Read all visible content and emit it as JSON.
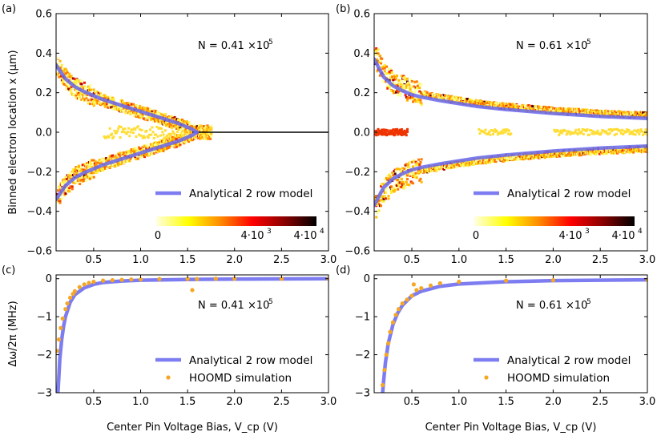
{
  "chart_data": [
    {
      "panel_label": "(a)",
      "type": "heatmap",
      "ylabel": "Binned electron location x (μm)",
      "xlim": [
        0.1,
        3.0
      ],
      "ylim": [
        -0.6,
        0.6
      ],
      "xticks": [
        "0.5",
        "1.0",
        "1.5",
        "2.0",
        "2.5",
        "3.0"
      ],
      "yticks": [
        "0.6",
        "0.4",
        "0.2",
        "0.0",
        "−0.2",
        "−0.4",
        "−0.6"
      ],
      "annotation": {
        "text": "N = 0.41 ×10",
        "sup": "5"
      },
      "colorbar": {
        "labels": [
          "0",
          "4·10",
          "4·10"
        ],
        "sups": [
          "",
          "3",
          "4"
        ],
        "colors": [
          "#ffffe0",
          "#ffff00",
          "#ff8c00",
          "#ff0000",
          "#8b0000",
          "#000000"
        ]
      },
      "series": [
        {
          "name": "Analytical 2 row model",
          "type": "line",
          "color": "#6666ee",
          "x": [
            0.1,
            0.2,
            0.3,
            0.4,
            0.5,
            0.6,
            0.7,
            0.8,
            0.9,
            1.0,
            1.1,
            1.2,
            1.3,
            1.4,
            1.5,
            1.55,
            1.6
          ],
          "y": [
            0.34,
            0.27,
            0.23,
            0.205,
            0.185,
            0.165,
            0.15,
            0.135,
            0.12,
            0.105,
            0.09,
            0.075,
            0.06,
            0.045,
            0.025,
            0.015,
            0.0
          ]
        }
      ],
      "legend": {
        "entries": [
          "Analytical 2 row model"
        ],
        "placement": "lower-right"
      }
    },
    {
      "panel_label": "(b)",
      "type": "heatmap",
      "xlim": [
        0.1,
        3.0
      ],
      "ylim": [
        -0.6,
        0.6
      ],
      "xticks": [
        "0.5",
        "1.0",
        "1.5",
        "2.0",
        "2.5",
        "3.0"
      ],
      "yticks": [
        "0.6",
        "0.4",
        "0.2",
        "0.0",
        "−0.2",
        "−0.4",
        "−0.6"
      ],
      "annotation": {
        "text": "N = 0.61 ×10",
        "sup": "5"
      },
      "colorbar": {
        "labels": [
          "0",
          "4·10",
          "4·10"
        ],
        "sups": [
          "",
          "3",
          "4"
        ],
        "colors": [
          "#ffffe0",
          "#ffff00",
          "#ff8c00",
          "#ff0000",
          "#8b0000",
          "#000000"
        ]
      },
      "series": [
        {
          "name": "Analytical 2 row model",
          "type": "line",
          "color": "#6666ee",
          "x": [
            0.1,
            0.2,
            0.3,
            0.4,
            0.5,
            0.6,
            0.8,
            1.0,
            1.2,
            1.5,
            2.0,
            2.5,
            3.0
          ],
          "y": [
            0.37,
            0.28,
            0.235,
            0.21,
            0.19,
            0.178,
            0.16,
            0.145,
            0.13,
            0.115,
            0.095,
            0.08,
            0.07
          ]
        }
      ],
      "legend": {
        "entries": [
          "Analytical 2 row model"
        ],
        "placement": "lower-right"
      }
    },
    {
      "panel_label": "(c)",
      "type": "line",
      "xlabel": "Center Pin Voltage Bias, V_cp (V)",
      "ylabel": "Δω/2π (MHz)",
      "xlim": [
        0.1,
        3.0
      ],
      "ylim": [
        -3,
        0.1
      ],
      "xticks": [
        "0.5",
        "1.0",
        "1.5",
        "2.0",
        "2.5",
        "3.0"
      ],
      "yticks": [
        "0",
        "−1",
        "−2",
        "−3"
      ],
      "annotation": {
        "text": "N = 0.41 ×10",
        "sup": "5"
      },
      "series": [
        {
          "name": "Analytical 2 row model",
          "type": "line",
          "color": "#6666ee",
          "x": [
            0.12,
            0.14,
            0.16,
            0.18,
            0.2,
            0.25,
            0.3,
            0.4,
            0.5,
            0.6,
            0.8,
            1.0,
            1.5,
            2.0,
            3.0
          ],
          "y": [
            -3.0,
            -2.1,
            -1.6,
            -1.25,
            -1.0,
            -0.62,
            -0.42,
            -0.24,
            -0.15,
            -0.1,
            -0.06,
            -0.04,
            -0.02,
            -0.01,
            0.0
          ]
        },
        {
          "name": "HOOMD simulation",
          "type": "scatter",
          "color": "#f5a623",
          "x": [
            0.11,
            0.13,
            0.15,
            0.17,
            0.2,
            0.22,
            0.25,
            0.28,
            0.3,
            0.35,
            0.4,
            0.45,
            0.5,
            0.6,
            0.7,
            0.8,
            0.9,
            1.0,
            1.2,
            1.5,
            1.55,
            1.6,
            1.8,
            2.0,
            2.5,
            3.0
          ],
          "y": [
            -1.9,
            -1.6,
            -1.3,
            -1.05,
            -0.8,
            -0.65,
            -0.5,
            -0.4,
            -0.33,
            -0.22,
            -0.15,
            -0.11,
            -0.08,
            -0.05,
            -0.04,
            -0.03,
            -0.02,
            -0.02,
            -0.01,
            -0.01,
            -0.3,
            -0.01,
            0.0,
            0.0,
            0.0,
            0.0
          ]
        }
      ],
      "legend": {
        "entries": [
          "Analytical 2 row model",
          "HOOMD simulation"
        ],
        "placement": "lower-right"
      }
    },
    {
      "panel_label": "(d)",
      "type": "line",
      "xlabel": "Center Pin Voltage Bias, V_cp (V)",
      "xlim": [
        0.1,
        3.0
      ],
      "ylim": [
        -3,
        0.1
      ],
      "xticks": [
        "0.5",
        "1.0",
        "1.5",
        "2.0",
        "2.5",
        "3.0"
      ],
      "yticks": [
        "0",
        "−1",
        "−2",
        "−3"
      ],
      "annotation": {
        "text": "N = 0.61 ×10",
        "sup": "5"
      },
      "series": [
        {
          "name": "Analytical 2 row model",
          "type": "line",
          "color": "#6666ee",
          "x": [
            0.19,
            0.2,
            0.22,
            0.25,
            0.3,
            0.35,
            0.4,
            0.5,
            0.6,
            0.8,
            1.0,
            1.5,
            2.0,
            3.0
          ],
          "y": [
            -3.0,
            -2.7,
            -2.2,
            -1.7,
            -1.2,
            -0.9,
            -0.7,
            -0.45,
            -0.33,
            -0.2,
            -0.14,
            -0.08,
            -0.05,
            -0.03
          ]
        },
        {
          "name": "HOOMD simulation",
          "type": "scatter",
          "color": "#f5a623",
          "x": [
            0.19,
            0.21,
            0.23,
            0.25,
            0.27,
            0.3,
            0.33,
            0.36,
            0.4,
            0.45,
            0.5,
            0.52,
            0.55,
            0.6,
            0.7,
            0.8,
            1.0,
            1.5,
            2.0,
            3.0
          ],
          "y": [
            -2.8,
            -2.4,
            -2.0,
            -1.7,
            -1.4,
            -1.15,
            -0.95,
            -0.8,
            -0.65,
            -0.55,
            -0.45,
            -0.15,
            -0.3,
            -0.25,
            -0.18,
            -0.12,
            -0.08,
            -0.05,
            -0.04,
            -0.03
          ]
        }
      ],
      "legend": {
        "entries": [
          "Analytical 2 row model",
          "HOOMD simulation"
        ],
        "placement": "lower-right"
      }
    }
  ]
}
